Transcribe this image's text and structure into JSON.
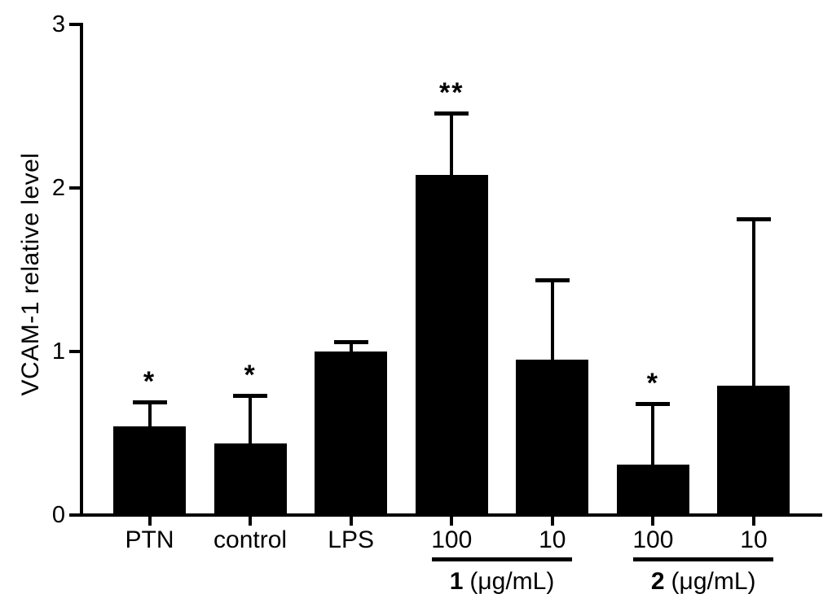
{
  "chart_data": {
    "type": "bar",
    "title": "",
    "ylabel": "VCAM-1 relative level",
    "xlabel": "",
    "ylim": [
      0,
      3
    ],
    "yticks": [
      0,
      1,
      2,
      3
    ],
    "grid": false,
    "legend_position": "none",
    "bar_color": "#000000",
    "error_bar_color": "#000000",
    "background_color": "#ffffff",
    "categories": [
      "PTN",
      "control",
      "LPS",
      "100",
      "10",
      "100",
      "10"
    ],
    "values": [
      0.54,
      0.44,
      1.0,
      2.08,
      0.95,
      0.31,
      0.79
    ],
    "errors_upper": [
      0.15,
      0.29,
      0.06,
      0.38,
      0.49,
      0.37,
      1.02
    ],
    "significance_labels": [
      "*",
      "*",
      "",
      "**",
      "",
      "*",
      ""
    ],
    "x_groups": [
      {
        "label": "1",
        "unit": "(μg/mL)",
        "from_index": 3,
        "to_index": 4
      },
      {
        "label": "2",
        "unit": "(μg/mL)",
        "from_index": 5,
        "to_index": 6
      }
    ]
  }
}
